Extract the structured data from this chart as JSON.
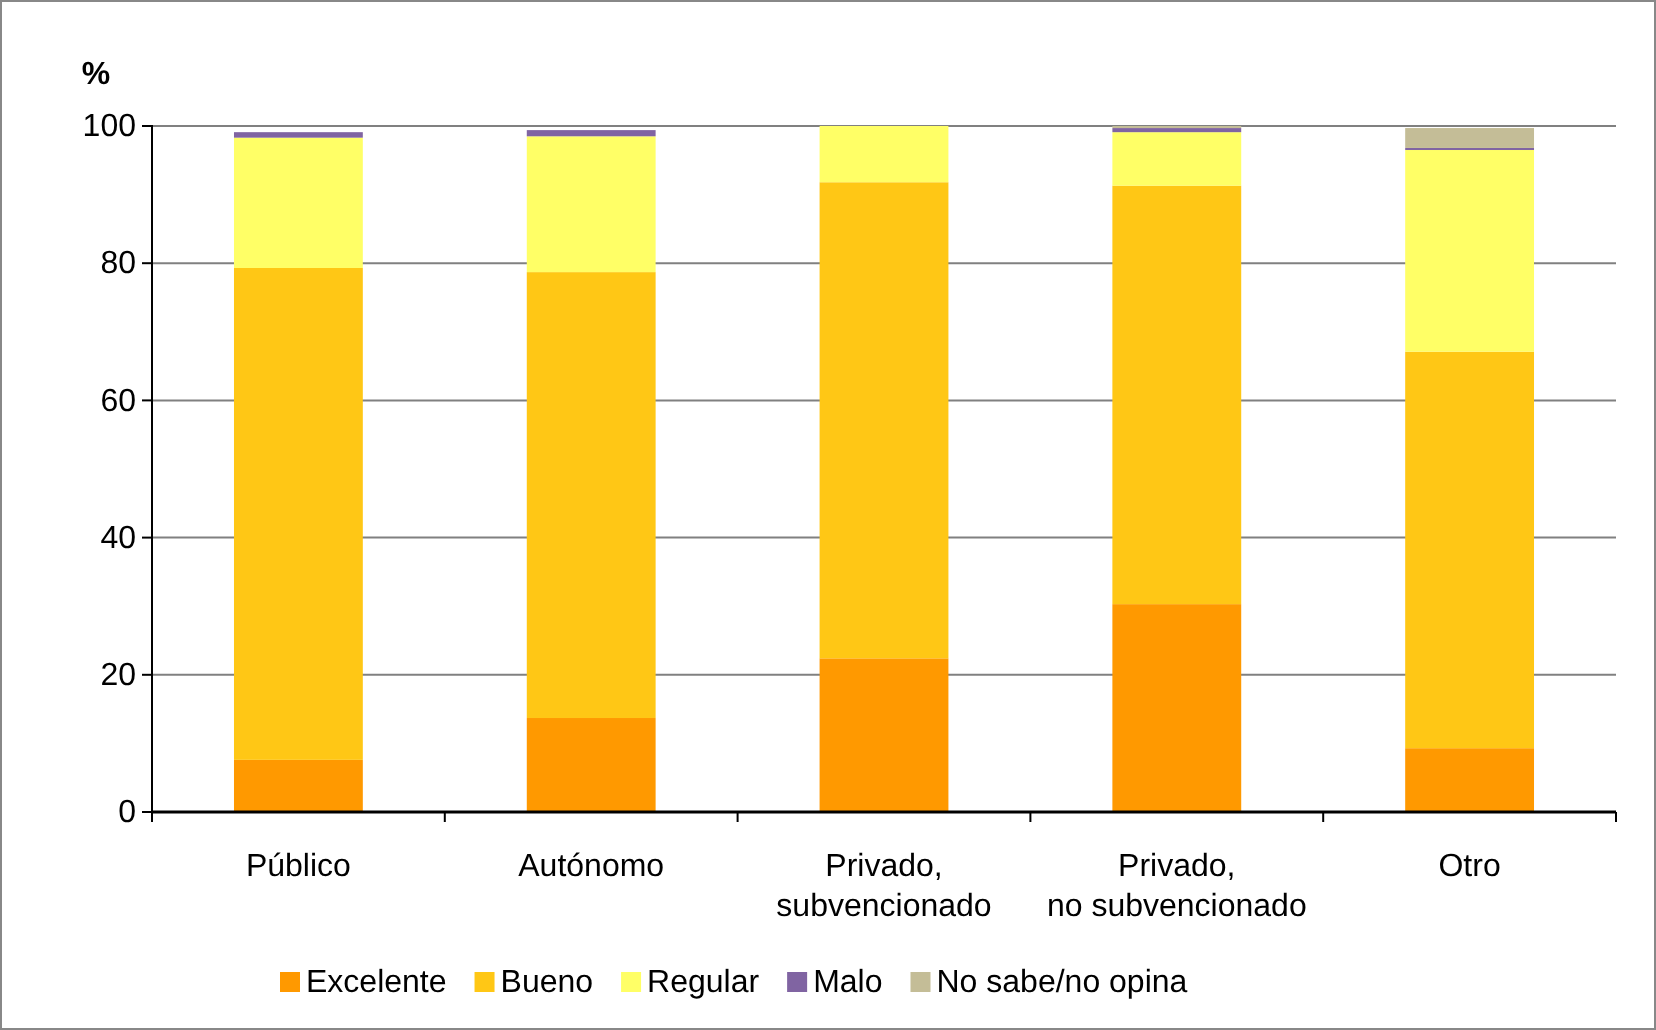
{
  "chart_data": {
    "type": "bar",
    "stacked": true,
    "ylabel": "%",
    "categories": [
      "Público",
      "Autónomo",
      "Privado, subvencionado",
      "Privado, no subvencionado",
      "Otro"
    ],
    "series": [
      {
        "name": "Excelente",
        "color": "#ff9900",
        "values": [
          7.6,
          13.7,
          22.4,
          30.3,
          9.3
        ]
      },
      {
        "name": "Bueno",
        "color": "#ffc715",
        "values": [
          71.7,
          65,
          69.4,
          61,
          57.8
        ]
      },
      {
        "name": "Regular",
        "color": "#ffff66",
        "values": [
          19,
          19.8,
          8.2,
          7.8,
          29.4
        ]
      },
      {
        "name": "Malo",
        "color": "#8064a2",
        "values": [
          0.8,
          0.9,
          null,
          0.6,
          0.3
        ]
      },
      {
        "name": "No sabe/no opina",
        "color": "#c4bd97",
        "values": [
          0,
          0,
          0,
          0.3,
          2.9
        ]
      }
    ],
    "ylim": [
      0,
      100
    ],
    "yticks": [
      0,
      20,
      40,
      60,
      80,
      100
    ],
    "grid": "y",
    "legend": "bottom"
  }
}
